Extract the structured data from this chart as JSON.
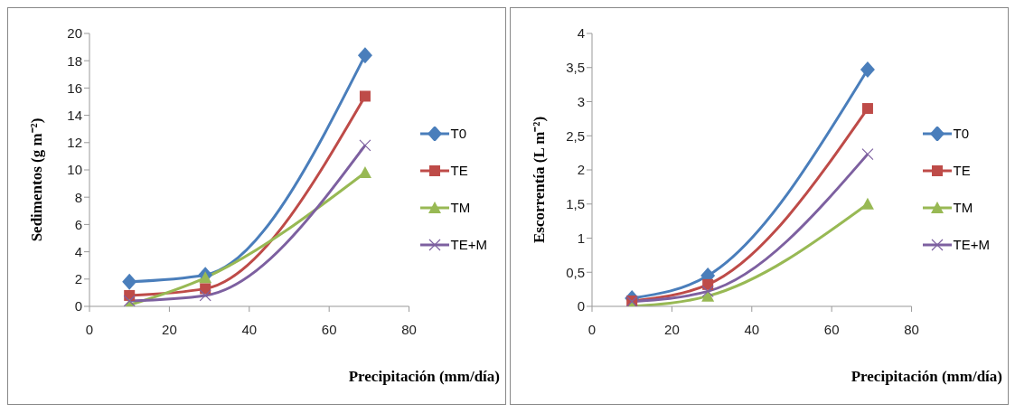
{
  "chart_data": [
    {
      "type": "line",
      "ylabel": "Sedimentos (g m⁻²)",
      "xlabel": "Precipitación (mm/día)",
      "x": [
        10,
        29,
        69
      ],
      "xlim": [
        0,
        80
      ],
      "xticks": [
        0,
        20,
        40,
        60,
        80
      ],
      "ylim": [
        0,
        20
      ],
      "yticks": [
        0,
        2,
        4,
        6,
        8,
        10,
        12,
        14,
        16,
        18,
        20
      ],
      "grid": false,
      "legend": "right",
      "line_style": "solid",
      "series": [
        {
          "name": "T0",
          "color": "#4a7ebb",
          "marker": "diamond",
          "values": [
            1.8,
            2.3,
            18.4
          ]
        },
        {
          "name": "TE",
          "color": "#be4b48",
          "marker": "square",
          "values": [
            0.8,
            1.3,
            15.4
          ]
        },
        {
          "name": "TM",
          "color": "#98b954",
          "marker": "triangle",
          "values": [
            0.1,
            2.1,
            9.8
          ]
        },
        {
          "name": "TE+M",
          "color": "#7d60a0",
          "marker": "cross",
          "values": [
            0.4,
            0.8,
            11.8
          ]
        }
      ]
    },
    {
      "type": "line",
      "ylabel": "Escorrentía (L m⁻²)",
      "xlabel": "Precipitación (mm/día)",
      "x": [
        10,
        29,
        69
      ],
      "xlim": [
        0,
        80
      ],
      "xticks": [
        0,
        20,
        40,
        60,
        80
      ],
      "ylim": [
        0,
        4
      ],
      "yticks": [
        0,
        {
          "value": 0.5,
          "label": "0,5"
        },
        1,
        {
          "value": 1.5,
          "label": "1,5"
        },
        2,
        {
          "value": 2.5,
          "label": "2,5"
        },
        3,
        {
          "value": 3.5,
          "label": "3,5"
        },
        4
      ],
      "grid": false,
      "legend": "right",
      "line_style": "solid",
      "series": [
        {
          "name": "T0",
          "color": "#4a7ebb",
          "marker": "diamond",
          "values": [
            0.12,
            0.45,
            3.47
          ]
        },
        {
          "name": "TE",
          "color": "#be4b48",
          "marker": "square",
          "values": [
            0.08,
            0.32,
            2.9
          ]
        },
        {
          "name": "TM",
          "color": "#98b954",
          "marker": "triangle",
          "values": [
            0.0,
            0.15,
            1.5
          ]
        },
        {
          "name": "TE+M",
          "color": "#7d60a0",
          "marker": "cross",
          "values": [
            0.07,
            0.22,
            2.23
          ]
        }
      ]
    }
  ]
}
